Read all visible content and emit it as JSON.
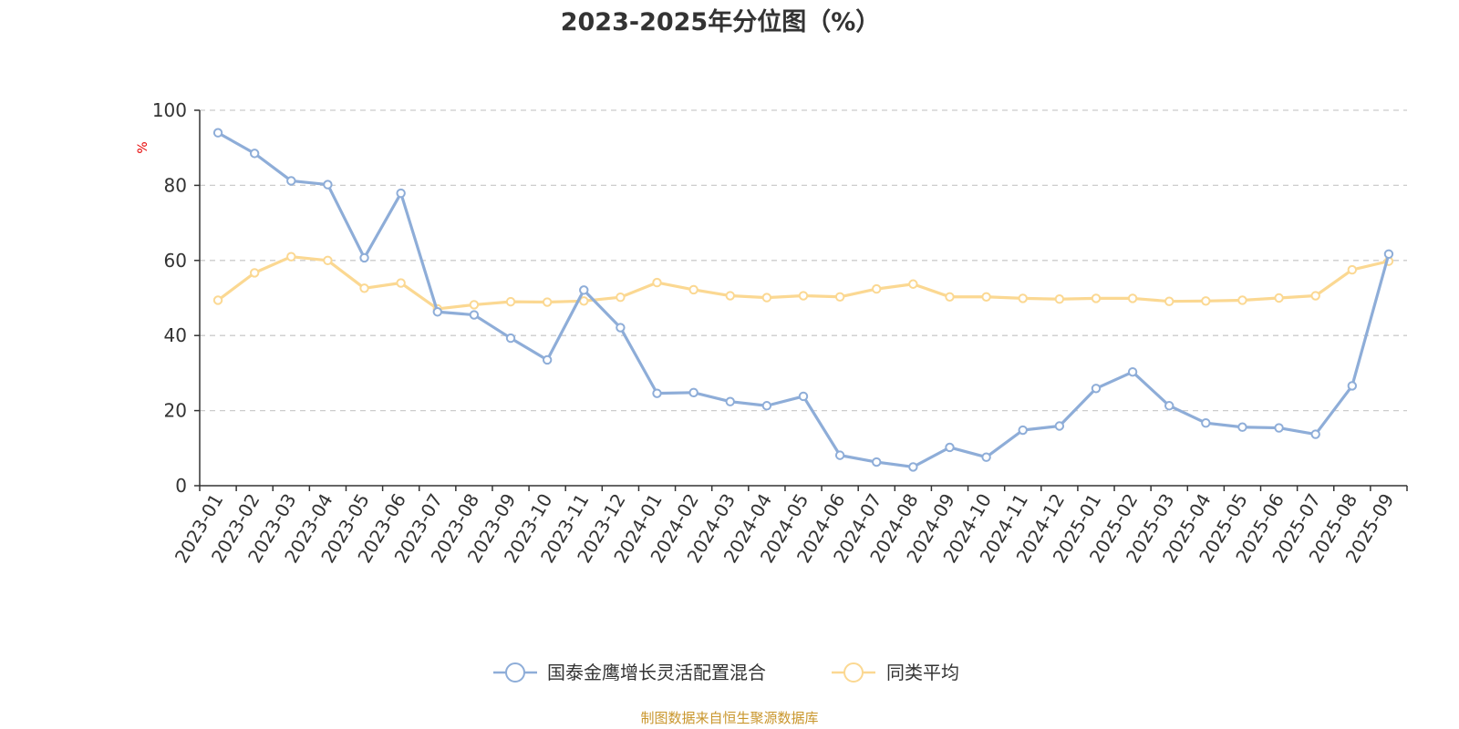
{
  "chart_data": {
    "type": "line",
    "title": "2023-2025年分位图（%）",
    "y_unit": "%",
    "ylim": [
      0,
      100
    ],
    "y_ticks": [
      0,
      20,
      40,
      60,
      80,
      100
    ],
    "grid": "horizontal-dashed",
    "legend_position": "bottom-center",
    "categories": [
      "2023-01",
      "2023-02",
      "2023-03",
      "2023-04",
      "2023-05",
      "2023-06",
      "2023-07",
      "2023-08",
      "2023-09",
      "2023-10",
      "2023-11",
      "2023-12",
      "2024-01",
      "2024-02",
      "2024-03",
      "2024-04",
      "2024-05",
      "2024-06",
      "2024-07",
      "2024-08",
      "2024-09",
      "2024-10",
      "2024-11",
      "2024-12",
      "2025-01",
      "2025-02",
      "2025-03",
      "2025-04",
      "2025-05",
      "2025-06",
      "2025-07",
      "2025-08",
      "2025-09"
    ],
    "series": [
      {
        "name": "国泰金鹰增长灵活配置混合",
        "color": "#8eadd8",
        "values": [
          94,
          88.5,
          81.2,
          80.2,
          60.7,
          77.9,
          46.3,
          45.5,
          39.3,
          33.5,
          52.1,
          42.1,
          24.6,
          24.8,
          22.4,
          21.3,
          23.8,
          8.1,
          6.3,
          5,
          10.2,
          7.6,
          14.8,
          15.9,
          25.9,
          30.3,
          21.3,
          16.7,
          15.6,
          15.4,
          13.7,
          26.6,
          61.7
        ]
      },
      {
        "name": "同类平均",
        "color": "#fbd892",
        "values": [
          49.4,
          56.7,
          61,
          60,
          52.6,
          54,
          47.1,
          48.2,
          49,
          48.9,
          49.2,
          50.2,
          54.1,
          52.2,
          50.6,
          50.1,
          50.6,
          50.3,
          52.4,
          53.7,
          50.3,
          50.3,
          49.9,
          49.7,
          49.9,
          49.9,
          49.1,
          49.2,
          49.4,
          50,
          50.6,
          57.5,
          59.8
        ]
      }
    ]
  },
  "footer": {
    "source": "制图数据来自恒生聚源数据库"
  }
}
